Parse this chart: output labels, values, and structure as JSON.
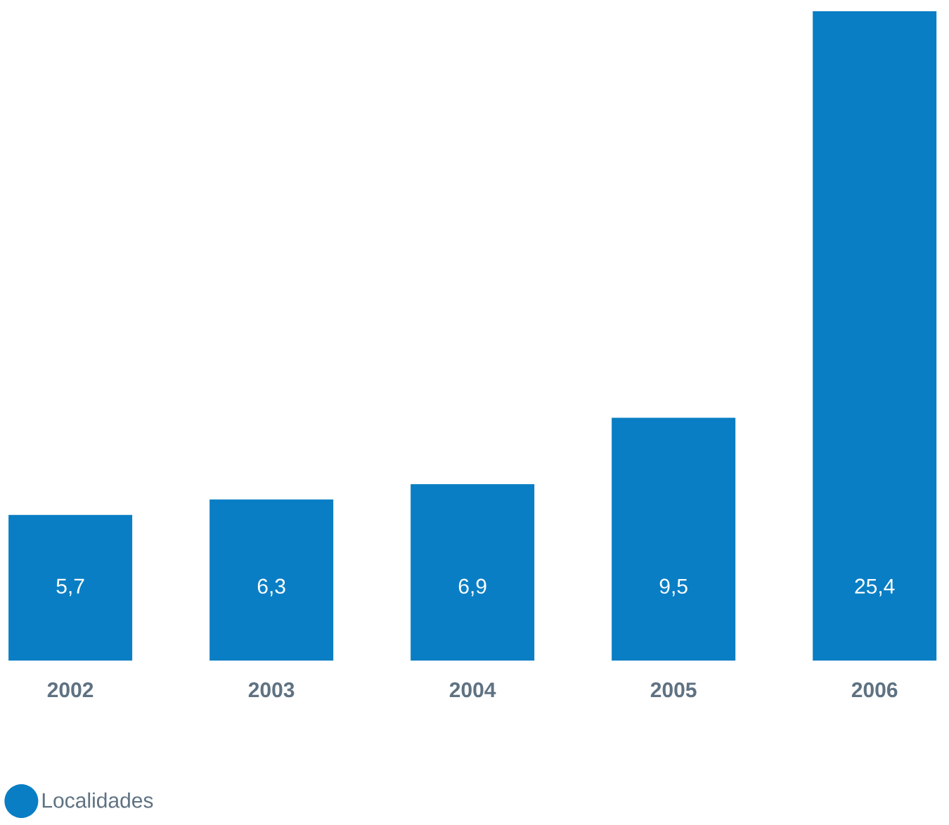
{
  "chart_data": {
    "type": "bar",
    "categories": [
      "2002",
      "2003",
      "2004",
      "2005",
      "2006"
    ],
    "series": [
      {
        "name": "Localidades",
        "color": "#0a7ec4",
        "values": [
          5.7,
          6.3,
          6.9,
          9.5,
          25.4
        ],
        "value_labels": [
          "5,7",
          "6,3",
          "6,9",
          "9,5",
          "25,4"
        ]
      }
    ],
    "ylim": [
      0,
      25.4
    ],
    "tick_labels": "x",
    "legend": "bottom left"
  }
}
